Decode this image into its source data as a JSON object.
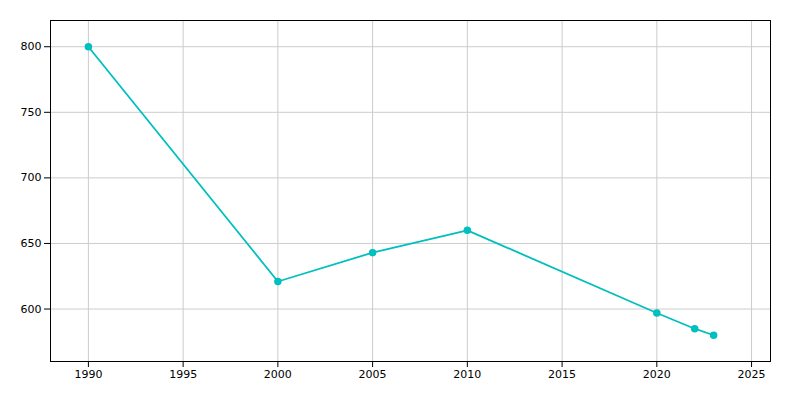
{
  "chart_data": {
    "type": "line",
    "x": [
      1990,
      2000,
      2005,
      2010,
      2020,
      2022,
      2023
    ],
    "values": [
      800,
      621,
      643,
      660,
      597,
      585,
      580
    ],
    "color": "#00BFBF",
    "marker": "circle",
    "xlim": [
      1988,
      2026
    ],
    "xticks": [
      1990,
      1995,
      2000,
      2005,
      2010,
      2015,
      2020,
      2025
    ],
    "ylim": [
      560,
      820
    ],
    "yticks": [
      600,
      650,
      700,
      750,
      800
    ],
    "grid": true
  }
}
